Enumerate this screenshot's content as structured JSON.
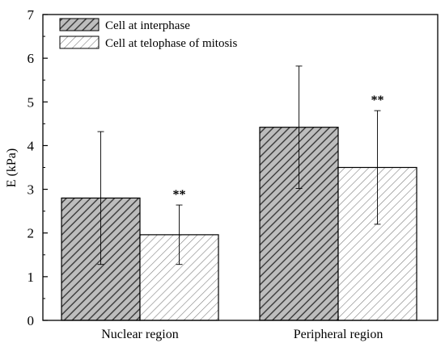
{
  "chart_data": {
    "type": "bar",
    "title": "",
    "xlabel": "",
    "ylabel": "E (kPa)",
    "ylim": [
      0,
      7
    ],
    "yticks": [
      0,
      1,
      2,
      3,
      4,
      5,
      6,
      7
    ],
    "categories": [
      "Nuclear region",
      "Peripheral region"
    ],
    "series": [
      {
        "name": "Cell at interphase",
        "values": [
          2.8,
          4.42
        ],
        "error": [
          1.52,
          1.4
        ],
        "significance": [
          "",
          ""
        ],
        "fill_color": "#bdbdbd",
        "hatch_color": "#404040"
      },
      {
        "name": "Cell at telophase of mitosis",
        "values": [
          1.96,
          3.5
        ],
        "error": [
          0.68,
          1.3
        ],
        "significance": [
          "**",
          "**"
        ],
        "fill_color": "#ffffff",
        "hatch_color": "#606060"
      }
    ],
    "legend_position": "top-left",
    "grid": false
  }
}
